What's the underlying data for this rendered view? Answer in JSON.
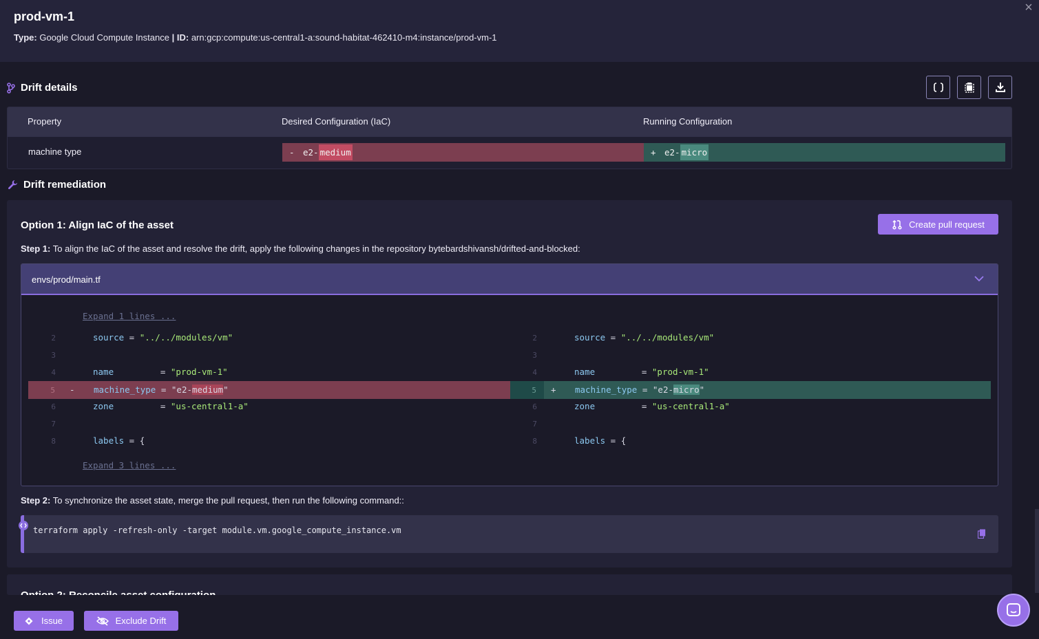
{
  "header": {
    "title": "prod-vm-1",
    "type_label": "Type:",
    "type_value": "Google Cloud Compute Instance",
    "separator": "|",
    "id_label": "ID:",
    "id_value": "arn:gcp:compute:us-central1-a:sound-habitat-462410-m4:instance/prod-vm-1",
    "close_icon": "×"
  },
  "drift_details": {
    "title": "Drift details",
    "toolbar_icons": [
      "json-icon",
      "copy-icon",
      "download-icon"
    ],
    "columns": [
      "Property",
      "Desired Configuration (IaC)",
      "Running Configuration"
    ],
    "rows": [
      {
        "property": "machine type",
        "desired_sign": "-",
        "desired_prefix": "e2-",
        "desired_highlight": "medium",
        "running_sign": "+",
        "running_prefix": "e2-",
        "running_highlight": "micro"
      }
    ]
  },
  "remediation": {
    "title": "Drift remediation",
    "option1": {
      "title": "Option 1: Align IaC of the asset",
      "create_pr_label": "Create pull request",
      "step1_label": "Step 1:",
      "step1_text": "To align the IaC of the asset and resolve the drift, apply the following changes in the repository bytebardshivansh/drifted-and-blocked:",
      "file": {
        "name": "envs/prod/main.tf",
        "expand_top": "Expand 1 lines ...",
        "expand_bottom": "Expand 3 lines ...",
        "left": {
          "line2": {
            "num": "2",
            "key": "source",
            "eq": " = ",
            "val": "\"../../modules/vm\""
          },
          "line3": {
            "num": "3"
          },
          "line4": {
            "num": "4",
            "key": "name",
            "eq": "         = ",
            "val": "\"prod-vm-1\""
          },
          "line5": {
            "num": "5",
            "sign": "-",
            "key": "machine_type",
            "eq": " = ",
            "val_prefix": "\"e2-",
            "val_hl": "medium",
            "val_suffix": "\""
          },
          "line6": {
            "num": "6",
            "key": "zone",
            "eq": "         = ",
            "val": "\"us-central1-a\""
          },
          "line7": {
            "num": "7"
          },
          "line8": {
            "num": "8",
            "key": "labels",
            "eq": " = {"
          }
        },
        "right": {
          "line2": {
            "num": "2",
            "key": "source",
            "eq": " = ",
            "val": "\"../../modules/vm\""
          },
          "line3": {
            "num": "3"
          },
          "line4": {
            "num": "4",
            "key": "name",
            "eq": "         = ",
            "val": "\"prod-vm-1\""
          },
          "line5": {
            "num": "5",
            "sign": "+",
            "key": "machine_type",
            "eq": " = ",
            "val_prefix": "\"e2-",
            "val_hl": "micro",
            "val_suffix": "\""
          },
          "line6": {
            "num": "6",
            "key": "zone",
            "eq": "         = ",
            "val": "\"us-central1-a\""
          },
          "line7": {
            "num": "7"
          },
          "line8": {
            "num": "8",
            "key": "labels",
            "eq": " = {"
          }
        }
      },
      "step2_label": "Step 2:",
      "step2_text": "To synchronize the asset state, merge the pull request, then run the following command::",
      "command": "terraform apply -refresh-only -target module.vm.google_compute_instance.vm"
    },
    "option2_title_partial": "Option 2: Reconcile asset configuration"
  },
  "footer": {
    "issue_label": "Issue",
    "exclude_label": "Exclude Drift"
  },
  "colors": {
    "accent": "#9770e8",
    "removed": "#7c3e50",
    "added": "#2f5a55"
  }
}
